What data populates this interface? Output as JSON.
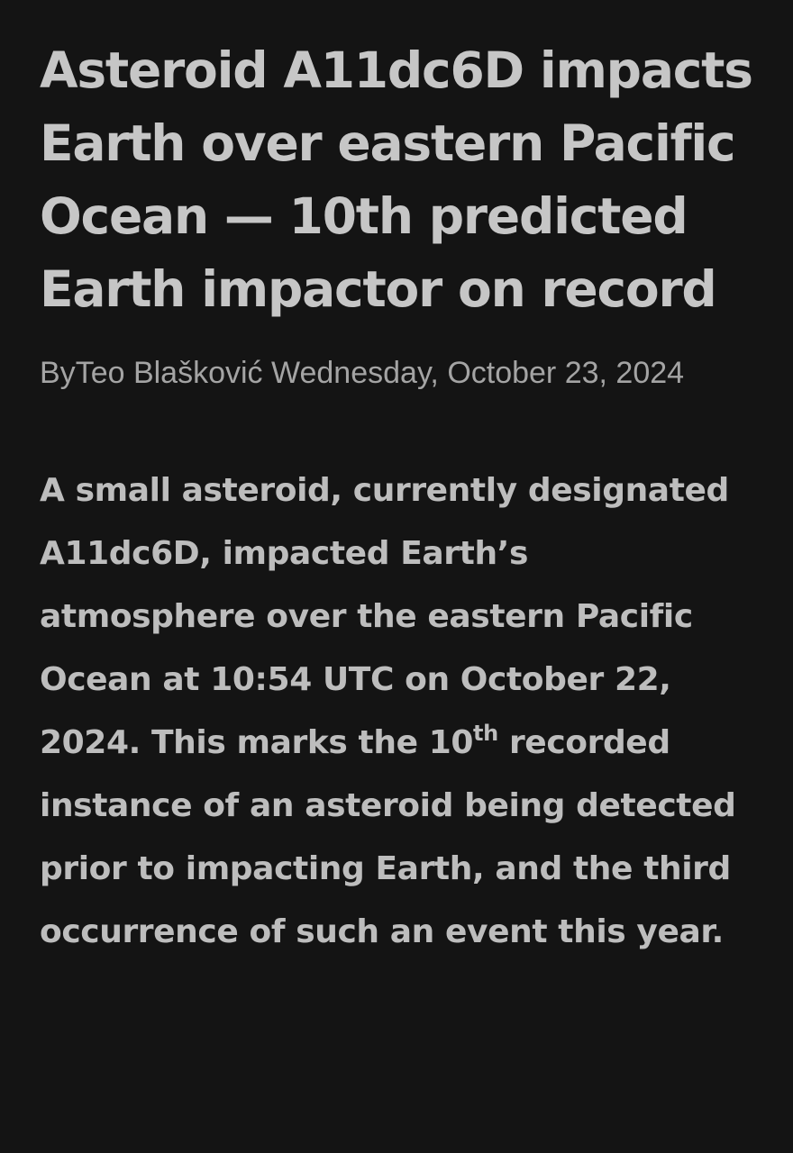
{
  "article": {
    "headline": "Asteroid A11dc6D impacts Earth over eastern Pacific Ocean — 10th predicted Earth impactor on record",
    "byline": {
      "prefix": "By",
      "author": "Teo Blašković",
      "date": "Wednesday, October 23, 2024"
    },
    "body": {
      "part1": "A small asteroid, currently designated A11dc6D, impacted Earth’s atmosphere over the eastern Pacific Ocean at 10:54 UTC on October 22, 2024. This marks the 10",
      "ordinal_suffix": "th",
      "part2": " recorded instance of an asteroid being detected prior to impacting Earth, and the third occurrence of such an event this year."
    }
  }
}
